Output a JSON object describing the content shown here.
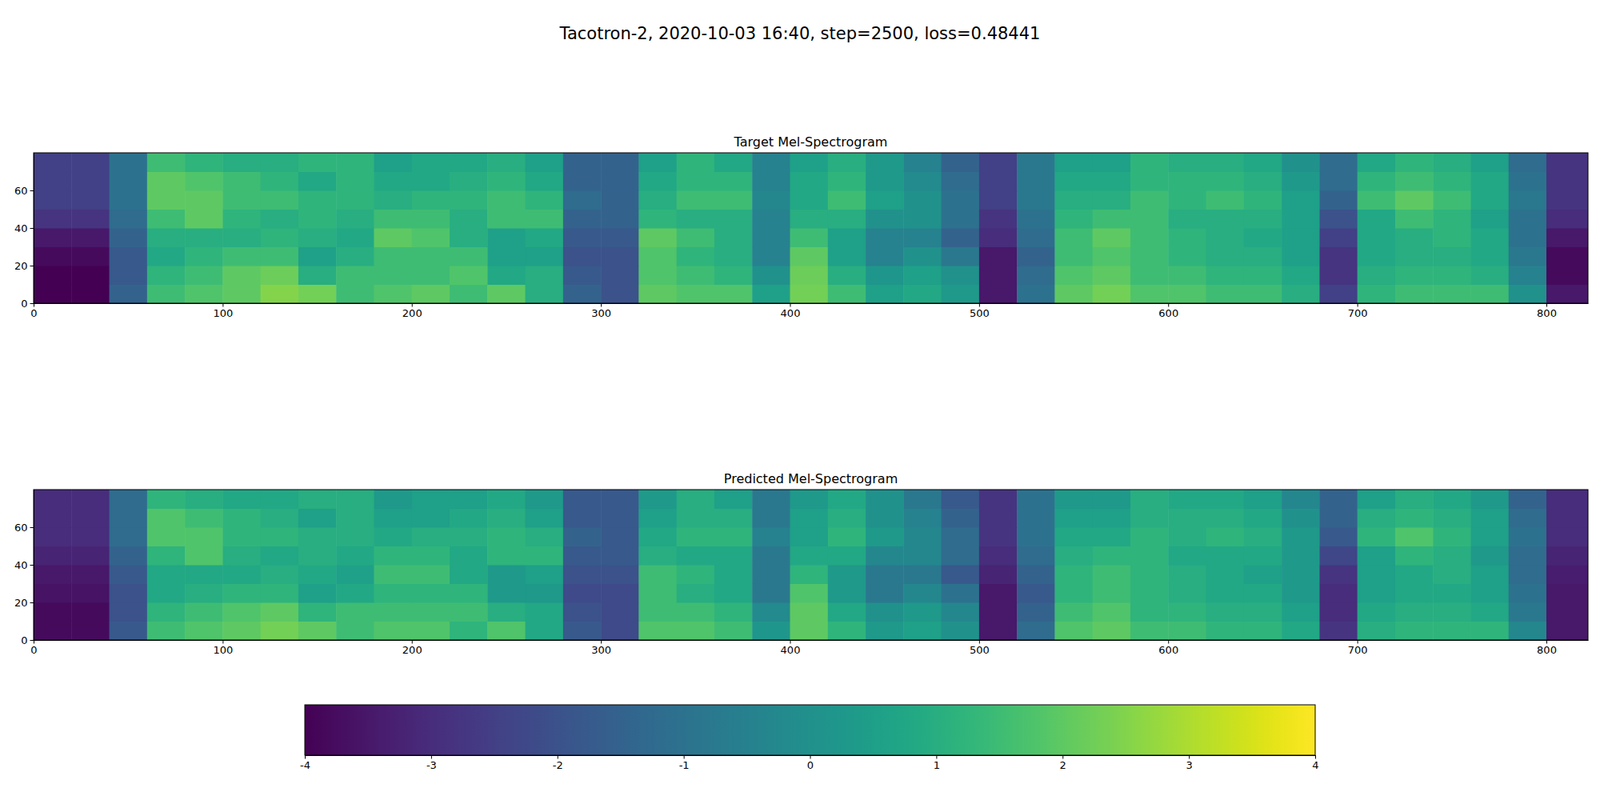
{
  "chart_data": {
    "type": "heatmap",
    "title": "Tacotron-2, 2020-10-03 16:40, step=2500, loss=0.48441",
    "xlim": [
      0,
      822
    ],
    "ylim": [
      0,
      80
    ],
    "xticks": [
      0,
      100,
      200,
      300,
      400,
      500,
      600,
      700,
      800
    ],
    "yticks": [
      0,
      20,
      40,
      60
    ],
    "x_edges": [
      0,
      20,
      40,
      60,
      80,
      100,
      120,
      140,
      160,
      180,
      200,
      220,
      240,
      260,
      280,
      300,
      320,
      340,
      360,
      380,
      400,
      420,
      440,
      460,
      480,
      500,
      520,
      540,
      560,
      580,
      600,
      620,
      640,
      660,
      680,
      700,
      720,
      740,
      760,
      780,
      800,
      822
    ],
    "y_edges": [
      0,
      10,
      20,
      30,
      40,
      50,
      60,
      70,
      80
    ],
    "colorbar": {
      "range": [
        -4,
        4
      ],
      "ticks": [
        -4,
        -3,
        -2,
        -1,
        0,
        1,
        2,
        3,
        4
      ]
    },
    "panels": [
      {
        "title": "Target Mel-Spectrogram",
        "z": [
          [
            -4,
            -4,
            -1.5,
            1.5,
            1.8,
            2.0,
            2.5,
            2.3,
            1.5,
            1.8,
            2.0,
            1.5,
            2.0,
            1.0,
            -1.5,
            -2.0,
            2.0,
            1.8,
            1.8,
            0.5,
            2.3,
            1.5,
            0.5,
            0.8,
            0.3,
            -3.5,
            -1.0,
            2.0,
            2.3,
            1.8,
            1.8,
            1.5,
            1.5,
            1.0,
            -2.5,
            1.2,
            1.5,
            1.5,
            1.5,
            0.0,
            -3.5
          ],
          [
            -4,
            -4,
            -1.8,
            1.2,
            1.5,
            2.0,
            2.2,
            1.0,
            1.5,
            1.5,
            1.5,
            1.8,
            0.8,
            1.0,
            -1.8,
            -2.0,
            1.8,
            1.5,
            1.2,
            0.0,
            2.2,
            1.0,
            0.2,
            0.5,
            0.0,
            -3.5,
            -1.2,
            1.8,
            2.0,
            1.5,
            1.5,
            1.2,
            1.2,
            0.8,
            -2.8,
            1.0,
            1.2,
            1.2,
            1.0,
            -0.5,
            -3.8
          ],
          [
            -3.8,
            -3.8,
            -1.8,
            0.8,
            1.2,
            1.5,
            1.5,
            0.5,
            1.0,
            1.5,
            1.5,
            1.5,
            0.5,
            0.5,
            -2.0,
            -2.0,
            1.8,
            1.2,
            1.0,
            -0.5,
            2.0,
            0.5,
            -0.5,
            0.0,
            -0.8,
            -3.5,
            -1.5,
            1.5,
            1.8,
            1.5,
            1.2,
            1.0,
            1.0,
            0.5,
            -2.8,
            0.8,
            1.0,
            1.0,
            0.8,
            -0.8,
            -3.8
          ],
          [
            -3.5,
            -3.5,
            -1.5,
            1.0,
            1.0,
            1.0,
            1.2,
            1.0,
            0.8,
            2.0,
            1.8,
            1.0,
            0.5,
            0.8,
            -1.8,
            -1.8,
            2.0,
            1.5,
            1.0,
            -0.5,
            1.5,
            0.5,
            -0.5,
            -0.5,
            -1.5,
            -3.0,
            -1.2,
            1.5,
            2.0,
            1.5,
            1.2,
            1.0,
            0.8,
            0.5,
            -2.5,
            0.8,
            1.0,
            1.2,
            0.8,
            -1.0,
            -3.5
          ],
          [
            -2.8,
            -2.8,
            -1.2,
            1.5,
            2.0,
            1.2,
            1.0,
            1.2,
            1.0,
            1.5,
            1.5,
            1.0,
            1.5,
            1.5,
            -1.5,
            -1.5,
            1.2,
            1.0,
            1.0,
            -0.5,
            1.0,
            1.0,
            0.0,
            0.0,
            -1.0,
            -2.8,
            -1.0,
            1.2,
            1.5,
            1.5,
            1.0,
            1.0,
            1.0,
            0.5,
            -2.0,
            0.8,
            1.5,
            1.2,
            0.5,
            -1.0,
            -3.0
          ],
          [
            -2.5,
            -2.5,
            -1.0,
            2.0,
            2.0,
            1.5,
            1.5,
            1.2,
            1.2,
            1.0,
            1.2,
            1.2,
            1.5,
            1.2,
            -1.2,
            -1.5,
            1.0,
            1.5,
            1.5,
            -0.3,
            0.8,
            1.5,
            0.5,
            0.0,
            -1.0,
            -2.5,
            -0.8,
            1.0,
            1.0,
            1.5,
            1.2,
            1.5,
            1.2,
            0.5,
            -1.5,
            1.5,
            2.0,
            1.5,
            0.8,
            -0.8,
            -2.8
          ],
          [
            -2.5,
            -2.5,
            -1.0,
            2.0,
            1.8,
            1.5,
            1.2,
            0.8,
            1.2,
            0.8,
            0.8,
            1.0,
            1.2,
            0.8,
            -1.5,
            -1.5,
            0.8,
            1.2,
            1.2,
            -0.5,
            0.8,
            1.2,
            0.3,
            -0.2,
            -1.2,
            -2.5,
            -0.8,
            0.8,
            0.8,
            1.2,
            1.2,
            1.2,
            1.0,
            0.3,
            -1.2,
            1.2,
            1.5,
            1.2,
            0.8,
            -1.0,
            -2.8
          ],
          [
            -2.5,
            -2.5,
            -1.0,
            1.5,
            1.2,
            1.0,
            1.0,
            1.2,
            1.2,
            0.5,
            0.8,
            0.8,
            1.0,
            0.5,
            -1.5,
            -1.5,
            0.5,
            1.2,
            0.8,
            -0.5,
            0.5,
            1.0,
            0.3,
            -0.5,
            -1.5,
            -2.5,
            -0.8,
            0.5,
            0.5,
            1.2,
            1.0,
            1.0,
            0.8,
            0.0,
            -1.2,
            0.8,
            1.2,
            1.0,
            0.5,
            -1.2,
            -2.8
          ]
        ]
      },
      {
        "title": "Predicted Mel-Spectrogram",
        "z": [
          [
            -3.8,
            -3.8,
            -1.8,
            1.5,
            1.8,
            2.0,
            2.3,
            2.0,
            1.5,
            1.8,
            1.8,
            1.2,
            1.8,
            0.8,
            -1.8,
            -2.2,
            1.8,
            1.8,
            1.5,
            0.2,
            2.0,
            1.2,
            0.3,
            0.5,
            0.0,
            -3.5,
            -1.2,
            1.8,
            2.0,
            1.5,
            1.5,
            1.2,
            1.2,
            0.8,
            -2.8,
            1.0,
            1.2,
            1.2,
            1.2,
            -0.3,
            -3.5
          ],
          [
            -3.8,
            -3.8,
            -2.0,
            1.2,
            1.5,
            1.8,
            2.0,
            1.2,
            1.5,
            1.5,
            1.5,
            1.5,
            1.0,
            0.8,
            -2.0,
            -2.2,
            1.5,
            1.5,
            1.2,
            -0.2,
            2.0,
            0.8,
            0.0,
            0.3,
            -0.3,
            -3.5,
            -1.5,
            1.5,
            1.8,
            1.2,
            1.2,
            1.0,
            1.0,
            0.5,
            -3.0,
            0.8,
            1.0,
            1.0,
            0.8,
            -0.8,
            -3.5
          ],
          [
            -3.6,
            -3.6,
            -2.0,
            0.8,
            1.0,
            1.2,
            1.2,
            0.5,
            0.8,
            1.2,
            1.2,
            1.2,
            0.3,
            0.3,
            -2.2,
            -2.2,
            1.5,
            1.0,
            0.8,
            -0.8,
            1.8,
            0.3,
            -0.8,
            -0.3,
            -1.0,
            -3.5,
            -1.8,
            1.2,
            1.5,
            1.2,
            1.0,
            0.8,
            0.8,
            0.3,
            -3.0,
            0.5,
            0.8,
            0.8,
            0.5,
            -1.0,
            -3.5
          ],
          [
            -3.5,
            -3.5,
            -1.8,
            0.8,
            0.8,
            0.8,
            1.0,
            0.8,
            0.5,
            1.5,
            1.5,
            0.8,
            0.3,
            0.5,
            -2.0,
            -2.0,
            1.5,
            1.2,
            0.8,
            -0.8,
            1.2,
            0.3,
            -0.8,
            -0.8,
            -1.8,
            -3.2,
            -1.5,
            1.2,
            1.5,
            1.2,
            1.0,
            0.8,
            0.5,
            0.3,
            -2.8,
            0.5,
            0.8,
            1.0,
            0.5,
            -1.2,
            -3.4
          ],
          [
            -3.2,
            -3.2,
            -1.5,
            1.2,
            1.8,
            1.0,
            0.8,
            1.0,
            0.8,
            1.2,
            1.2,
            0.8,
            1.2,
            1.2,
            -1.8,
            -1.8,
            1.0,
            0.8,
            0.8,
            -0.8,
            0.8,
            0.8,
            -0.3,
            -0.3,
            -1.2,
            -3.0,
            -1.2,
            1.0,
            1.2,
            1.2,
            0.8,
            0.8,
            0.8,
            0.3,
            -2.3,
            0.5,
            1.2,
            1.0,
            0.3,
            -1.2,
            -3.2
          ],
          [
            -3.0,
            -3.0,
            -1.2,
            1.8,
            1.8,
            1.2,
            1.2,
            1.0,
            1.0,
            0.8,
            1.0,
            1.0,
            1.2,
            1.0,
            -1.5,
            -1.8,
            0.8,
            1.2,
            1.2,
            -0.5,
            0.5,
            1.2,
            0.3,
            -0.3,
            -1.2,
            -2.8,
            -1.0,
            0.8,
            0.8,
            1.2,
            1.0,
            1.2,
            1.0,
            0.3,
            -1.8,
            1.2,
            1.8,
            1.2,
            0.5,
            -1.0,
            -3.0
          ],
          [
            -3.0,
            -3.0,
            -1.2,
            1.8,
            1.5,
            1.2,
            1.0,
            0.5,
            1.0,
            0.5,
            0.5,
            0.8,
            1.0,
            0.5,
            -1.8,
            -1.8,
            0.5,
            1.0,
            1.0,
            -0.8,
            0.5,
            1.0,
            0.0,
            -0.5,
            -1.5,
            -2.8,
            -1.0,
            0.5,
            0.5,
            1.0,
            1.0,
            1.0,
            0.8,
            0.0,
            -1.5,
            1.0,
            1.2,
            1.0,
            0.5,
            -1.2,
            -3.0
          ],
          [
            -3.0,
            -3.0,
            -1.2,
            1.2,
            1.0,
            0.8,
            0.8,
            1.0,
            1.0,
            0.3,
            0.5,
            0.5,
            0.8,
            0.3,
            -1.8,
            -1.8,
            0.3,
            1.0,
            0.5,
            -0.8,
            0.3,
            0.8,
            0.0,
            -0.8,
            -1.8,
            -2.8,
            -1.0,
            0.3,
            0.3,
            1.0,
            0.8,
            0.8,
            0.5,
            -0.3,
            -1.5,
            0.5,
            1.0,
            0.8,
            0.3,
            -1.5,
            -3.0
          ]
        ]
      }
    ]
  }
}
